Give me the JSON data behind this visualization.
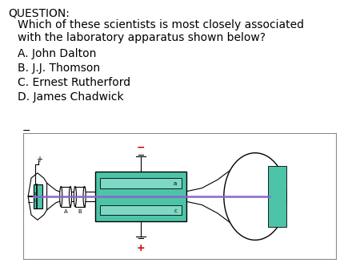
{
  "bg_color": "#ffffff",
  "question_label": "QUESTION:",
  "question_text": "Which of these scientists is most closely associated\nwith the laboratory apparatus shown below?",
  "choices": [
    "A. John Dalton",
    "B. J.J. Thomson",
    "C. Ernest Rutherford",
    "D. James Chadwick"
  ],
  "title_fontsize": 10,
  "choice_fontsize": 10,
  "teal_color": "#4dc4a8",
  "teal_light": "#7ed8c4",
  "beam_color": "#8866cc",
  "plus_color": "#cc0000",
  "minus_color": "#cc0000",
  "black": "#000000",
  "white": "#ffffff",
  "diagram_border": "#888888"
}
